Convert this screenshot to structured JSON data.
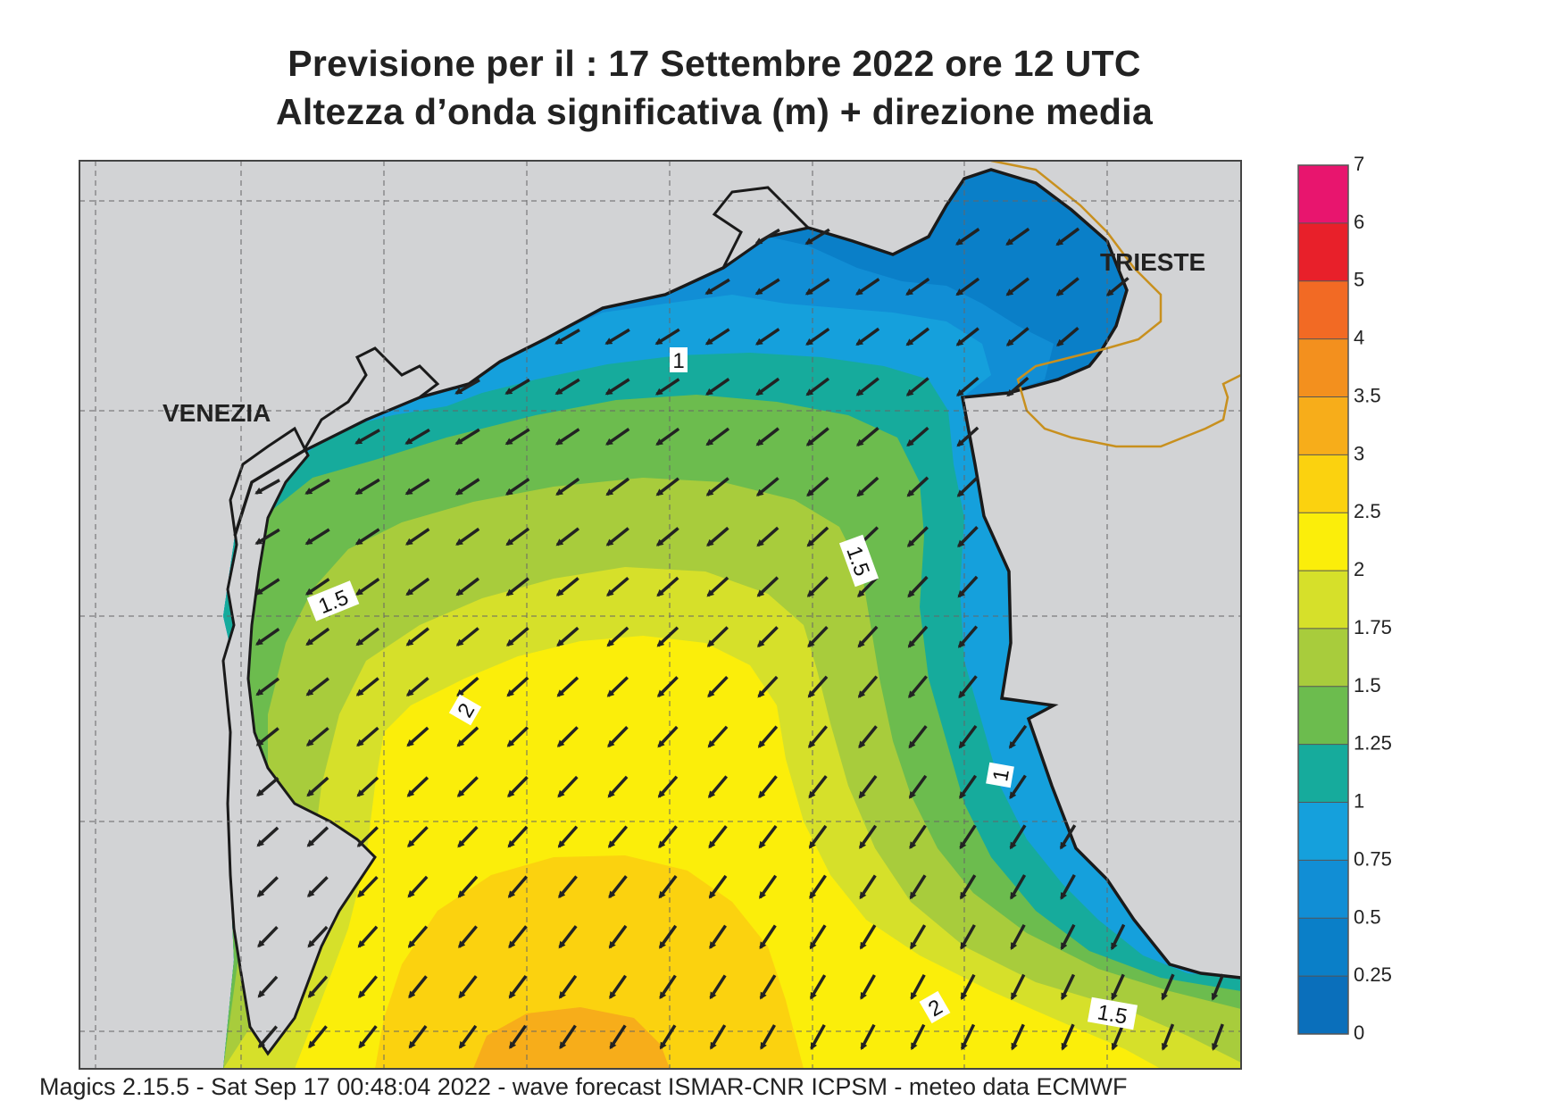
{
  "title": {
    "line1": "Previsione per il  :  17 Settembre 2022   ore 12 UTC",
    "line2": "Altezza d’onda significativa (m) + direzione media"
  },
  "places": {
    "venezia": "VENEZIA",
    "trieste": "TRIESTE"
  },
  "contour_labels": [
    "1",
    "1.5",
    "1.5",
    "2",
    "1",
    "2",
    "1.5"
  ],
  "legend": {
    "ticks": [
      "7",
      "6",
      "5",
      "4",
      "3.5",
      "3",
      "2.5",
      "2",
      "1.75",
      "1.5",
      "1.25",
      "1",
      "0.75",
      "0.5",
      "0.25",
      "0"
    ],
    "colors": [
      "#e8156e",
      "#e8202a",
      "#f26a24",
      "#f3901e",
      "#f7ad1a",
      "#fbd20f",
      "#fbee0a",
      "#d6e02a",
      "#a8cc3c",
      "#6cbc4e",
      "#16ab9c",
      "#15a0dc",
      "#118ed5",
      "#0a7fc8",
      "#0a6fbb"
    ]
  },
  "colors": {
    "land": "#d2d3d5",
    "coast": "#1a1a1a",
    "border": "#c8901e",
    "arrow": "#222222"
  },
  "footer": "Magics 2.15.5 - Sat Sep 17 00:48:04 2022 - wave forecast  ISMAR-CNR  ICPSM - meteo data   ECMWF"
}
